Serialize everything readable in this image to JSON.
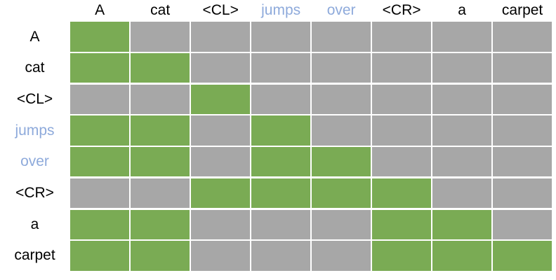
{
  "figure": {
    "description_label": "attention-mask matrix of tokens, green = attended, gray = masked"
  },
  "chart_data": {
    "type": "heatmap",
    "title": "",
    "columns": [
      "A",
      "cat",
      "<CL>",
      "jumps",
      "over",
      "<CR>",
      "a",
      "carpet"
    ],
    "rows": [
      "A",
      "cat",
      "<CL>",
      "jumps",
      "over",
      "<CR>",
      "a",
      "carpet"
    ],
    "values": [
      [
        1,
        0,
        0,
        0,
        0,
        0,
        0,
        0
      ],
      [
        1,
        1,
        0,
        0,
        0,
        0,
        0,
        0
      ],
      [
        0,
        0,
        1,
        0,
        0,
        0,
        0,
        0
      ],
      [
        1,
        1,
        0,
        1,
        0,
        0,
        0,
        0
      ],
      [
        1,
        1,
        0,
        1,
        1,
        0,
        0,
        0
      ],
      [
        0,
        0,
        1,
        1,
        1,
        1,
        0,
        0
      ],
      [
        1,
        1,
        0,
        0,
        0,
        1,
        1,
        0
      ],
      [
        1,
        1,
        0,
        0,
        0,
        1,
        1,
        1
      ]
    ],
    "value_legend": {
      "1": "attended (green cell)",
      "0": "masked (gray cell)"
    },
    "cell_colors": {
      "on": "#7AAB54",
      "off": "#A7A7A7"
    },
    "highlighted_tokens": [
      "jumps",
      "over"
    ],
    "highlight_color": "#8EAADB",
    "text_color": "#000000",
    "grid_line_color": "#FFFFFF",
    "layout": {
      "grid": "8x8",
      "labels": "top and left",
      "legend_position": "none"
    }
  }
}
